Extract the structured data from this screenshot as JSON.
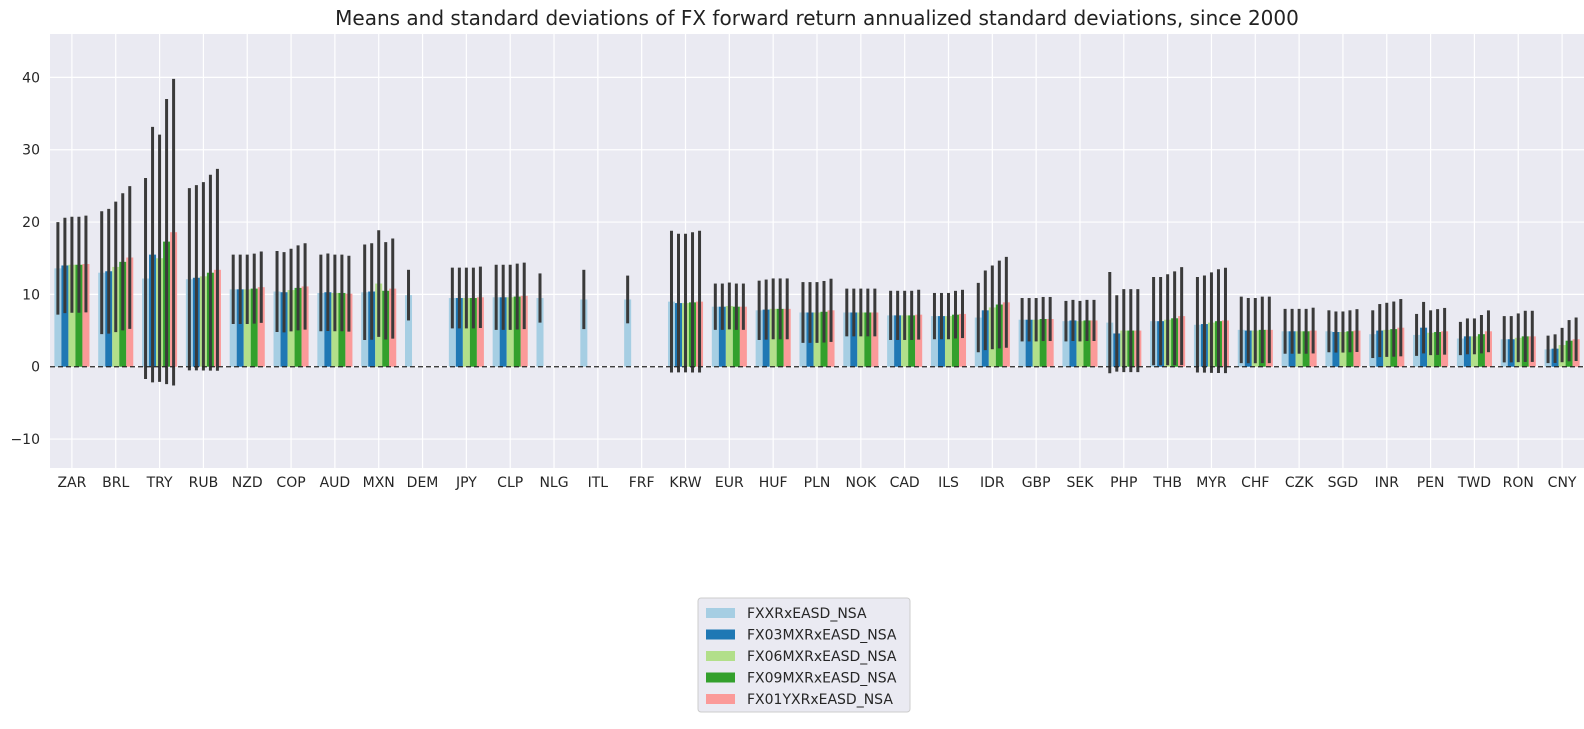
{
  "chart_data": {
    "type": "bar",
    "title": "Means and standard deviations of FX forward return annualized standard deviations, since 2000",
    "xlabel": "",
    "ylabel": "",
    "ylim": [
      -14,
      46
    ],
    "yticks": [
      -10,
      0,
      10,
      20,
      30,
      40
    ],
    "ytick_labels": [
      "−10",
      "0",
      "10",
      "20",
      "30",
      "40"
    ],
    "grid": true,
    "legend_position": "bottom-center",
    "categories": [
      "ZAR",
      "BRL",
      "TRY",
      "RUB",
      "NZD",
      "COP",
      "AUD",
      "MXN",
      "DEM",
      "JPY",
      "CLP",
      "NLG",
      "ITL",
      "FRF",
      "KRW",
      "EUR",
      "HUF",
      "PLN",
      "NOK",
      "CAD",
      "ILS",
      "IDR",
      "GBP",
      "SEK",
      "PHP",
      "THB",
      "MYR",
      "CHF",
      "CZK",
      "SGD",
      "INR",
      "PEN",
      "TWD",
      "RON",
      "CNY"
    ],
    "series": [
      {
        "name": "FXXRxEASD_NSA",
        "color": "#a6cee3",
        "values": [
          13.6,
          13.0,
          12.2,
          12.1,
          10.7,
          10.4,
          10.2,
          10.3,
          9.9,
          9.5,
          9.6,
          9.5,
          9.3,
          9.3,
          9.0,
          8.3,
          7.8,
          7.5,
          7.5,
          7.1,
          7.0,
          6.8,
          6.5,
          6.3,
          6.1,
          6.3,
          5.8,
          5.1,
          4.9,
          4.9,
          4.5,
          4.4,
          3.9,
          3.8,
          2.4
        ],
        "stds": [
          6.4,
          8.5,
          13.9,
          12.6,
          4.8,
          5.6,
          5.3,
          6.6,
          3.5,
          4.2,
          4.5,
          3.4,
          4.1,
          3.3,
          9.8,
          3.2,
          4.1,
          4.2,
          3.3,
          3.4,
          3.2,
          4.8,
          3.0,
          2.8,
          7.0,
          6.1,
          6.6,
          4.6,
          3.1,
          2.9,
          3.3,
          2.9,
          2.3,
          3.2,
          1.9
        ]
      },
      {
        "name": "FX03MXRxEASD_NSA",
        "color": "#1f78b4",
        "values": [
          14.0,
          13.2,
          15.5,
          12.3,
          10.7,
          10.3,
          10.3,
          10.4,
          null,
          9.5,
          9.6,
          null,
          null,
          null,
          8.8,
          8.3,
          7.9,
          7.5,
          7.5,
          7.1,
          7.0,
          7.8,
          6.5,
          6.4,
          4.6,
          6.3,
          5.9,
          5.0,
          4.9,
          4.8,
          5.0,
          5.4,
          4.2,
          3.8,
          2.5
        ]
      },
      {
        "name": "FX06MXRxEASD_NSA",
        "color": "#b2df8a",
        "values": [
          14.1,
          13.8,
          15.0,
          12.5,
          10.7,
          10.6,
          10.2,
          11.5,
          null,
          9.5,
          9.6,
          null,
          null,
          null,
          8.8,
          8.4,
          8.0,
          7.5,
          7.5,
          7.1,
          7.0,
          8.2,
          6.5,
          6.3,
          5.0,
          6.5,
          6.1,
          5.0,
          4.9,
          4.8,
          5.1,
          4.7,
          4.2,
          4.0,
          3.0
        ]
      },
      {
        "name": "FX09MXRxEASD_NSA",
        "color": "#33a02c",
        "values": [
          14.1,
          14.5,
          17.3,
          13.0,
          10.8,
          10.9,
          10.2,
          10.5,
          null,
          9.5,
          9.7,
          null,
          null,
          null,
          8.9,
          8.3,
          8.0,
          7.6,
          7.5,
          7.1,
          7.2,
          8.6,
          6.6,
          6.4,
          5.0,
          6.7,
          6.3,
          5.1,
          4.9,
          4.9,
          5.2,
          4.8,
          4.5,
          4.2,
          3.6
        ]
      },
      {
        "name": "FX01YXRxEASD_NSA",
        "color": "#fb9a99",
        "values": [
          14.2,
          15.1,
          18.6,
          13.4,
          11.0,
          11.1,
          10.1,
          10.8,
          null,
          9.6,
          9.8,
          null,
          null,
          null,
          9.0,
          8.3,
          8.0,
          7.8,
          7.5,
          7.2,
          7.3,
          8.9,
          6.6,
          6.4,
          5.0,
          7.0,
          6.4,
          5.1,
          5.0,
          5.0,
          5.4,
          4.9,
          4.9,
          4.2,
          3.8
        ]
      }
    ]
  }
}
